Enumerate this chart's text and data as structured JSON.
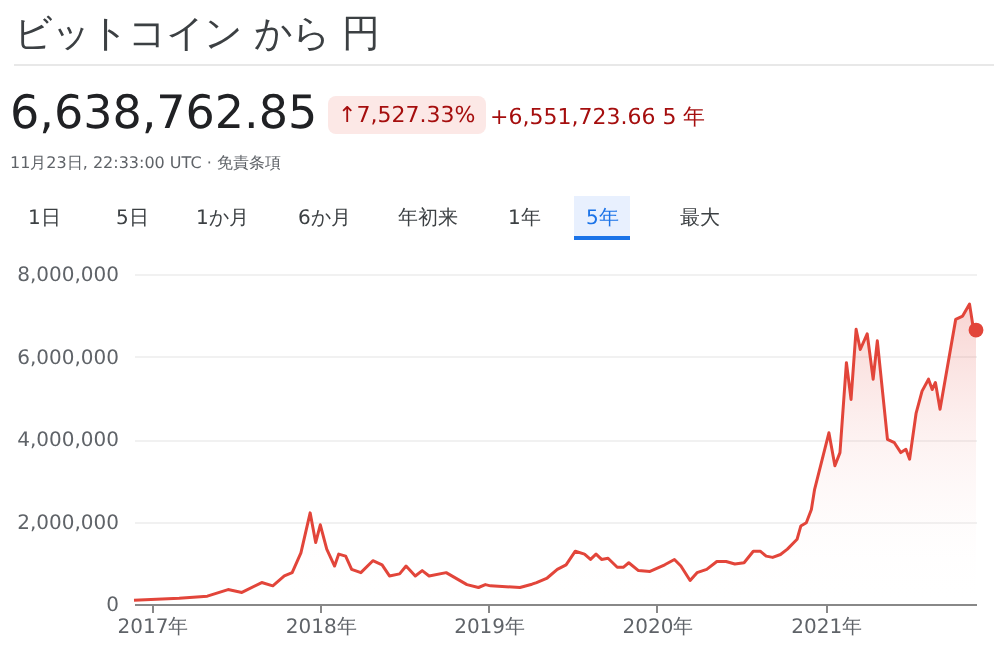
{
  "chart_data": {
    "type": "area",
    "title": "ビットコイン から 円",
    "subtitle": "6,638,762.85",
    "annotations": [
      "↑7,527.33%",
      "+6,551,723.66 5 年",
      "11月23日, 22:33:00 UTC · 免責条項",
      "1日",
      "5日",
      "1か月",
      "6か月",
      "年初来",
      "1年",
      "5年",
      "最大"
    ],
    "xlim": [
      "2016-11-23",
      "2021-11-23"
    ],
    "xticks": [
      {
        "value": "2017-01-01",
        "label": "2017年"
      },
      {
        "value": "2018-01-01",
        "label": "2018年"
      },
      {
        "value": "2019-01-01",
        "label": "2019年"
      },
      {
        "value": "2020-01-01",
        "label": "2020年"
      },
      {
        "value": "2021-01-01",
        "label": "2021年"
      }
    ],
    "ylim": [
      0,
      8000000
    ],
    "yticks": [
      0,
      {
        "value": 2000000,
        "label": "2,000,000"
      },
      {
        "value": 4000000,
        "label": "4,000,000"
      },
      {
        "value": 6000000,
        "label": "6,000,000"
      },
      {
        "value": 8000000,
        "label": "8,000,000"
      }
    ],
    "grid": "y",
    "series": [
      {
        "color": "#e2453a",
        "x": [
          "2016-11-23",
          "2017-03-01",
          "2017-05-01",
          "2017-06-15",
          "2017-07-15",
          "2017-08-27",
          "2017-09-20",
          "2017-10-15",
          "2017-11-01",
          "2017-11-20",
          "2017-12-10",
          "2017-12-22",
          "2018-01-01",
          "2018-01-15",
          "2018-02-01",
          "2018-02-10",
          "2018-02-25",
          "2018-03-10",
          "2018-03-30",
          "2018-04-25",
          "2018-05-15",
          "2018-05-31",
          "2018-06-22",
          "2018-07-06",
          "2018-07-26",
          "2018-08-10",
          "2018-08-25",
          "2018-10-01",
          "2018-11-15",
          "2018-12-10",
          "2018-12-25",
          "2019-01-05",
          "2019-03-10",
          "2019-04-05",
          "2019-04-15",
          "2019-05-08",
          "2019-05-30",
          "2019-06-18",
          "2019-07-08",
          "2019-07-28",
          "2019-08-10",
          "2019-08-22",
          "2019-09-03",
          "2019-09-17",
          "2019-10-07",
          "2019-10-20",
          "2019-11-01",
          "2019-11-22",
          "2019-12-17",
          "2020-01-18",
          "2020-02-08",
          "2020-02-22",
          "2020-03-13",
          "2020-03-28",
          "2020-04-18",
          "2020-05-10",
          "2020-05-30",
          "2020-06-18",
          "2020-07-08",
          "2020-07-28",
          "2020-08-12",
          "2020-08-25",
          "2020-09-08",
          "2020-09-25",
          "2020-10-10",
          "2020-10-31",
          "2020-11-08",
          "2020-11-20",
          "2020-12-01",
          "2020-12-08",
          "2021-01-08",
          "2021-01-21",
          "2021-02-01",
          "2021-02-15",
          "2021-02-25",
          "2021-03-08",
          "2021-03-17",
          "2021-04-01",
          "2021-04-14",
          "2021-04-23",
          "2021-05-15",
          "2021-05-30",
          "2021-06-13",
          "2021-06-24",
          "2021-07-02",
          "2021-07-16",
          "2021-07-29",
          "2021-08-12",
          "2021-08-20",
          "2021-08-27",
          "2021-09-06",
          "2021-10-10",
          "2021-10-25",
          "2021-11-09",
          "2021-11-16",
          "2021-11-23"
        ],
        "values": [
          90000,
          140000,
          190000,
          350000,
          280000,
          520000,
          440000,
          680000,
          760000,
          1240000,
          2210000,
          1490000,
          1920000,
          1330000,
          920000,
          1210000,
          1160000,
          840000,
          760000,
          1050000,
          950000,
          680000,
          730000,
          920000,
          680000,
          810000,
          680000,
          760000,
          470000,
          400000,
          470000,
          440000,
          400000,
          480000,
          520000,
          630000,
          840000,
          950000,
          1280000,
          1210000,
          1080000,
          1210000,
          1080000,
          1110000,
          890000,
          890000,
          1000000,
          810000,
          790000,
          950000,
          1080000,
          920000,
          570000,
          760000,
          840000,
          1030000,
          1030000,
          970000,
          1000000,
          1280000,
          1280000,
          1160000,
          1130000,
          1200000,
          1330000,
          1570000,
          1890000,
          1970000,
          2290000,
          2780000,
          4150000,
          3350000,
          3670000,
          5850000,
          4960000,
          6660000,
          6170000,
          6550000,
          5450000,
          6380000,
          3990000,
          3910000,
          3670000,
          3750000,
          3510000,
          4620000,
          5160000,
          5450000,
          5200000,
          5370000,
          4720000,
          6900000,
          6980000,
          7270000,
          6770000,
          6640000
        ]
      },
      {
        "type": "scatter",
        "color": "#e2453a",
        "x": [
          "2021-11-23"
        ],
        "values": [
          6640000
        ]
      }
    ]
  }
}
